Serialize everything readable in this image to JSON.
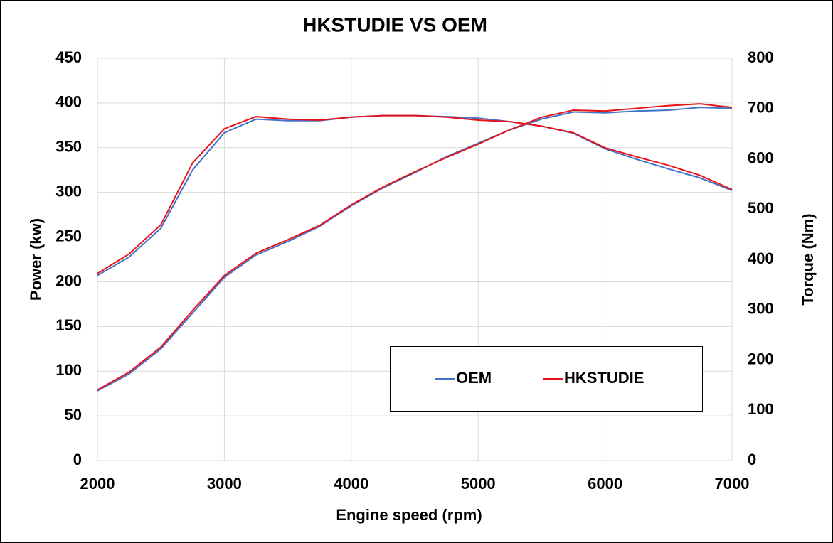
{
  "chart_data": {
    "type": "line",
    "title": "HKSTUDIE VS OEM",
    "x_label": "Engine speed (rpm)",
    "y_label": "Power (kw)",
    "y2_label": "Torque (Nm)",
    "x": [
      2000,
      2250,
      2500,
      2750,
      3000,
      3250,
      3500,
      3750,
      4000,
      4250,
      4500,
      4750,
      5000,
      5250,
      5500,
      5750,
      6000,
      6250,
      6500,
      6750,
      7000
    ],
    "xlim": [
      2000,
      7000
    ],
    "xticks": [
      2000,
      3000,
      4000,
      5000,
      6000,
      7000
    ],
    "ylim": [
      0,
      450
    ],
    "yticks": [
      0,
      50,
      100,
      150,
      200,
      250,
      300,
      350,
      400,
      450
    ],
    "y2lim": [
      0,
      800
    ],
    "y2ticks": [
      0,
      100,
      200,
      300,
      400,
      500,
      600,
      700,
      800
    ],
    "grid": true,
    "legend": "bottom-right",
    "series": [
      {
        "name": "OEM",
        "color": "#4472c4",
        "values": [
          78,
          97,
          125,
          165,
          205,
          230,
          245,
          262,
          285,
          305,
          322,
          340,
          355,
          370,
          382,
          390,
          389,
          391,
          392,
          395,
          394
        ],
        "y2_values": [
          368,
          405,
          462,
          578,
          652,
          679,
          676,
          676,
          683,
          686,
          686,
          684,
          681,
          674,
          665,
          651,
          620,
          599,
          580,
          562,
          537
        ]
      },
      {
        "name": "HKSTUDIE",
        "color": "#e8131a",
        "values": [
          79,
          99,
          127,
          168,
          207,
          232,
          247,
          263,
          286,
          306,
          323,
          339,
          354,
          370,
          384,
          392,
          391,
          394,
          397,
          399,
          395
        ],
        "y2_values": [
          372,
          411,
          469,
          592,
          660,
          684,
          679,
          677,
          683,
          686,
          686,
          683,
          677,
          674,
          665,
          652,
          622,
          604,
          587,
          567,
          539
        ]
      }
    ]
  }
}
